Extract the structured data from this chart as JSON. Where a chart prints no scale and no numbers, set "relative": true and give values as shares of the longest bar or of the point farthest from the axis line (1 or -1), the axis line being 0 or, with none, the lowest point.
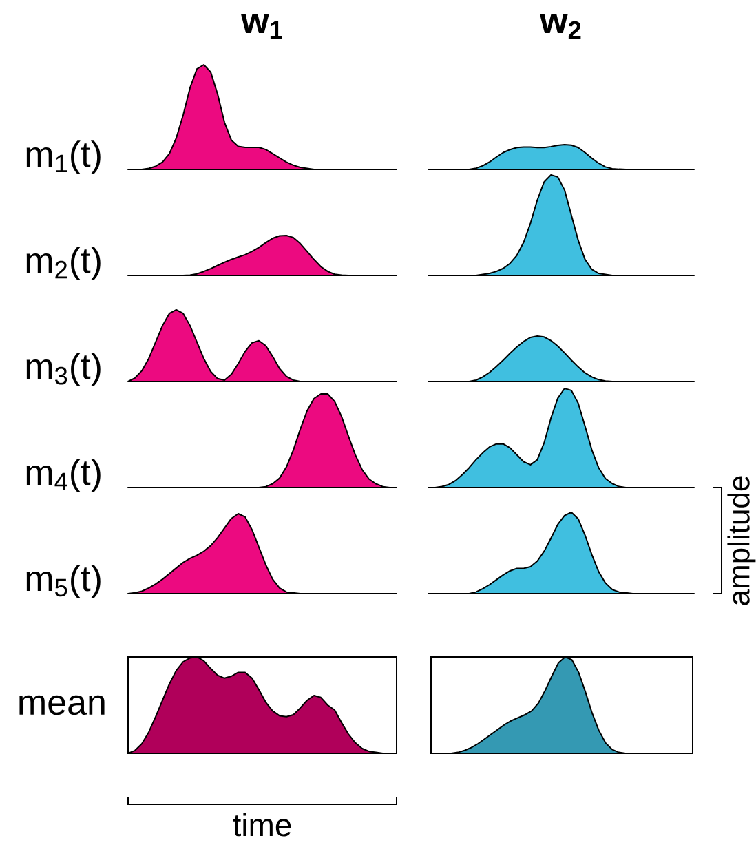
{
  "chart_data": [
    {
      "type": "area",
      "title": "w$_{1}$",
      "ylabel": "m$_{1}$(t)",
      "relative": true,
      "color": "#ec0a80",
      "categories": [
        null,
        null,
        null,
        null,
        null,
        null,
        null,
        null,
        null,
        null,
        null,
        null,
        null,
        null,
        null,
        null,
        null,
        null,
        null,
        null,
        null,
        null,
        null,
        null,
        null,
        null,
        null,
        null,
        null,
        null,
        null,
        null,
        null,
        null,
        null,
        null,
        null,
        null,
        null,
        null
      ],
      "values": [
        0,
        0,
        0,
        0.01,
        0.03,
        0.07,
        0.15,
        0.3,
        0.52,
        0.78,
        0.96,
        1.0,
        0.93,
        0.72,
        0.45,
        0.28,
        0.22,
        0.21,
        0.21,
        0.21,
        0.19,
        0.15,
        0.11,
        0.07,
        0.04,
        0.02,
        0.01,
        0,
        0,
        0,
        0,
        0,
        0,
        0,
        0,
        0,
        0,
        0,
        0,
        0
      ]
    },
    {
      "type": "area",
      "title": "w$_{2}$",
      "relative": true,
      "color": "#40bfe0",
      "categories": [
        null,
        null,
        null,
        null,
        null,
        null,
        null,
        null,
        null,
        null,
        null,
        null,
        null,
        null,
        null,
        null,
        null,
        null,
        null,
        null,
        null,
        null,
        null,
        null,
        null,
        null,
        null,
        null,
        null,
        null,
        null,
        null,
        null,
        null,
        null,
        null,
        null,
        null,
        null,
        null
      ],
      "values": [
        0,
        0,
        0,
        0,
        0,
        0,
        0,
        0.05,
        0.15,
        0.3,
        0.5,
        0.68,
        0.8,
        0.88,
        0.9,
        0.9,
        0.88,
        0.88,
        0.92,
        0.97,
        1.0,
        0.98,
        0.88,
        0.68,
        0.45,
        0.25,
        0.1,
        0.03,
        0.01,
        0,
        0,
        0,
        0,
        0,
        0,
        0,
        0,
        0,
        0,
        0
      ]
    },
    {
      "type": "area",
      "ylabel": "m$_{2}$(t)",
      "relative": true,
      "color": "#ec0a80",
      "categories": [
        null,
        null,
        null,
        null,
        null,
        null,
        null,
        null,
        null,
        null,
        null,
        null,
        null,
        null,
        null,
        null,
        null,
        null,
        null,
        null,
        null,
        null,
        null,
        null,
        null,
        null,
        null,
        null,
        null,
        null,
        null,
        null,
        null,
        null,
        null,
        null,
        null,
        null,
        null,
        null
      ],
      "values": [
        0,
        0,
        0,
        0,
        0,
        0,
        0,
        0,
        0,
        0.01,
        0.04,
        0.1,
        0.17,
        0.25,
        0.33,
        0.4,
        0.46,
        0.52,
        0.6,
        0.7,
        0.82,
        0.93,
        0.99,
        1.0,
        0.95,
        0.8,
        0.6,
        0.4,
        0.22,
        0.1,
        0.03,
        0.01,
        0,
        0,
        0,
        0,
        0,
        0,
        0,
        0
      ]
    },
    {
      "type": "area",
      "relative": true,
      "color": "#40bfe0",
      "categories": [
        null,
        null,
        null,
        null,
        null,
        null,
        null,
        null,
        null,
        null,
        null,
        null,
        null,
        null,
        null,
        null,
        null,
        null,
        null,
        null,
        null,
        null,
        null,
        null,
        null,
        null,
        null,
        null,
        null,
        null,
        null,
        null,
        null,
        null,
        null,
        null,
        null,
        null,
        null,
        null
      ],
      "values": [
        0,
        0,
        0,
        0,
        0,
        0,
        0,
        0,
        0.01,
        0.02,
        0.04,
        0.07,
        0.12,
        0.2,
        0.33,
        0.52,
        0.75,
        0.93,
        1.0,
        0.98,
        0.85,
        0.6,
        0.35,
        0.16,
        0.06,
        0.02,
        0.01,
        0,
        0,
        0,
        0,
        0,
        0,
        0,
        0,
        0,
        0,
        0,
        0,
        0
      ]
    },
    {
      "type": "area",
      "ylabel": "m$_{3}$(t)",
      "relative": true,
      "color": "#ec0a80",
      "categories": [
        null,
        null,
        null,
        null,
        null,
        null,
        null,
        null,
        null,
        null,
        null,
        null,
        null,
        null,
        null,
        null,
        null,
        null,
        null,
        null,
        null,
        null,
        null,
        null,
        null,
        null,
        null,
        null,
        null,
        null,
        null,
        null,
        null,
        null,
        null,
        null,
        null,
        null,
        null,
        null
      ],
      "values": [
        0,
        0.05,
        0.15,
        0.32,
        0.55,
        0.78,
        0.95,
        1.0,
        0.95,
        0.78,
        0.55,
        0.32,
        0.14,
        0.04,
        0.02,
        0.1,
        0.25,
        0.42,
        0.54,
        0.57,
        0.5,
        0.35,
        0.18,
        0.07,
        0.02,
        0,
        0,
        0,
        0,
        0,
        0,
        0,
        0,
        0,
        0,
        0,
        0,
        0,
        0,
        0
      ]
    },
    {
      "type": "area",
      "relative": true,
      "color": "#40bfe0",
      "categories": [
        null,
        null,
        null,
        null,
        null,
        null,
        null,
        null,
        null,
        null,
        null,
        null,
        null,
        null,
        null,
        null,
        null,
        null,
        null,
        null,
        null,
        null,
        null,
        null,
        null,
        null,
        null,
        null,
        null,
        null,
        null,
        null,
        null,
        null,
        null,
        null,
        null,
        null,
        null,
        null
      ],
      "values": [
        0,
        0,
        0,
        0,
        0,
        0,
        0,
        0.03,
        0.1,
        0.2,
        0.33,
        0.47,
        0.62,
        0.76,
        0.88,
        0.97,
        1.0,
        0.98,
        0.9,
        0.78,
        0.63,
        0.47,
        0.32,
        0.19,
        0.1,
        0.04,
        0.01,
        0,
        0,
        0,
        0,
        0,
        0,
        0,
        0,
        0,
        0,
        0,
        0,
        0
      ]
    },
    {
      "type": "area",
      "ylabel": "m$_{4}$(t)",
      "relative": true,
      "color": "#ec0a80",
      "categories": [
        null,
        null,
        null,
        null,
        null,
        null,
        null,
        null,
        null,
        null,
        null,
        null,
        null,
        null,
        null,
        null,
        null,
        null,
        null,
        null,
        null,
        null,
        null,
        null,
        null,
        null,
        null,
        null,
        null,
        null,
        null,
        null,
        null,
        null,
        null,
        null,
        null,
        null,
        null,
        null
      ],
      "values": [
        0,
        0,
        0,
        0,
        0,
        0,
        0,
        0,
        0,
        0,
        0,
        0,
        0,
        0,
        0,
        0,
        0,
        0,
        0,
        0,
        0.01,
        0.04,
        0.1,
        0.22,
        0.4,
        0.62,
        0.82,
        0.95,
        1.0,
        1.0,
        0.92,
        0.76,
        0.55,
        0.35,
        0.19,
        0.09,
        0.04,
        0.01,
        0,
        0
      ]
    },
    {
      "type": "area",
      "relative": true,
      "color": "#40bfe0",
      "categories": [
        null,
        null,
        null,
        null,
        null,
        null,
        null,
        null,
        null,
        null,
        null,
        null,
        null,
        null,
        null,
        null,
        null,
        null,
        null,
        null,
        null,
        null,
        null,
        null,
        null,
        null,
        null,
        null,
        null,
        null,
        null,
        null,
        null,
        null,
        null,
        null,
        null,
        null,
        null,
        null
      ],
      "values": [
        0,
        0,
        0.01,
        0.03,
        0.07,
        0.13,
        0.2,
        0.28,
        0.35,
        0.41,
        0.44,
        0.44,
        0.4,
        0.33,
        0.26,
        0.23,
        0.28,
        0.45,
        0.7,
        0.9,
        1.0,
        0.98,
        0.85,
        0.62,
        0.38,
        0.2,
        0.09,
        0.04,
        0.01,
        0,
        0,
        0,
        0,
        0,
        0,
        0,
        0,
        0,
        0,
        0
      ]
    },
    {
      "type": "area",
      "ylabel": "m$_{5}$(t)",
      "relative": true,
      "color": "#ec0a80",
      "categories": [
        null,
        null,
        null,
        null,
        null,
        null,
        null,
        null,
        null,
        null,
        null,
        null,
        null,
        null,
        null,
        null,
        null,
        null,
        null,
        null,
        null,
        null,
        null,
        null,
        null,
        null,
        null,
        null,
        null,
        null,
        null,
        null,
        null,
        null,
        null,
        null,
        null,
        null,
        null,
        null
      ],
      "values": [
        0,
        0.01,
        0.03,
        0.07,
        0.12,
        0.18,
        0.25,
        0.32,
        0.39,
        0.44,
        0.48,
        0.53,
        0.6,
        0.7,
        0.82,
        0.94,
        1.0,
        0.96,
        0.8,
        0.58,
        0.36,
        0.18,
        0.07,
        0.02,
        0.01,
        0,
        0,
        0,
        0,
        0,
        0,
        0,
        0,
        0,
        0,
        0,
        0,
        0,
        0,
        0
      ]
    },
    {
      "type": "area",
      "y2label": "amplitude",
      "relative": true,
      "color": "#40bfe0",
      "categories": [
        null,
        null,
        null,
        null,
        null,
        null,
        null,
        null,
        null,
        null,
        null,
        null,
        null,
        null,
        null,
        null,
        null,
        null,
        null,
        null,
        null,
        null,
        null,
        null,
        null,
        null,
        null,
        null,
        null,
        null,
        null,
        null,
        null,
        null,
        null,
        null,
        null,
        null,
        null,
        null
      ],
      "values": [
        0,
        0,
        0,
        0,
        0,
        0,
        0,
        0.02,
        0.06,
        0.11,
        0.17,
        0.23,
        0.28,
        0.31,
        0.31,
        0.33,
        0.4,
        0.52,
        0.68,
        0.85,
        0.96,
        1.0,
        0.92,
        0.72,
        0.48,
        0.27,
        0.13,
        0.05,
        0.02,
        0.01,
        0,
        0,
        0,
        0,
        0,
        0,
        0,
        0,
        0,
        0
      ]
    },
    {
      "type": "area",
      "ylabel": "mean",
      "xlabel": "time",
      "relative": true,
      "color": "#b0005a",
      "categories": [
        null,
        null,
        null,
        null,
        null,
        null,
        null,
        null,
        null,
        null,
        null,
        null,
        null,
        null,
        null,
        null,
        null,
        null,
        null,
        null,
        null,
        null,
        null,
        null,
        null,
        null,
        null,
        null,
        null,
        null,
        null,
        null,
        null,
        null,
        null,
        null,
        null,
        null,
        null,
        null
      ],
      "values": [
        0,
        0.03,
        0.1,
        0.22,
        0.38,
        0.55,
        0.72,
        0.86,
        0.95,
        0.99,
        1.0,
        0.96,
        0.88,
        0.81,
        0.78,
        0.8,
        0.84,
        0.84,
        0.78,
        0.66,
        0.53,
        0.44,
        0.39,
        0.38,
        0.4,
        0.47,
        0.55,
        0.6,
        0.58,
        0.5,
        0.45,
        0.32,
        0.2,
        0.11,
        0.05,
        0.02,
        0.01,
        0,
        0,
        0
      ]
    },
    {
      "type": "area",
      "relative": true,
      "color": "#3499b3",
      "categories": [
        null,
        null,
        null,
        null,
        null,
        null,
        null,
        null,
        null,
        null,
        null,
        null,
        null,
        null,
        null,
        null,
        null,
        null,
        null,
        null,
        null,
        null,
        null,
        null,
        null,
        null,
        null,
        null,
        null,
        null,
        null,
        null,
        null,
        null,
        null,
        null,
        null,
        null,
        null,
        null
      ],
      "values": [
        0,
        0,
        0,
        0,
        0.01,
        0.03,
        0.06,
        0.1,
        0.15,
        0.2,
        0.25,
        0.3,
        0.34,
        0.37,
        0.4,
        0.44,
        0.52,
        0.65,
        0.8,
        0.94,
        1.0,
        0.97,
        0.84,
        0.64,
        0.42,
        0.24,
        0.11,
        0.04,
        0.01,
        0,
        0,
        0,
        0,
        0,
        0,
        0,
        0,
        0,
        0,
        0
      ]
    }
  ]
}
